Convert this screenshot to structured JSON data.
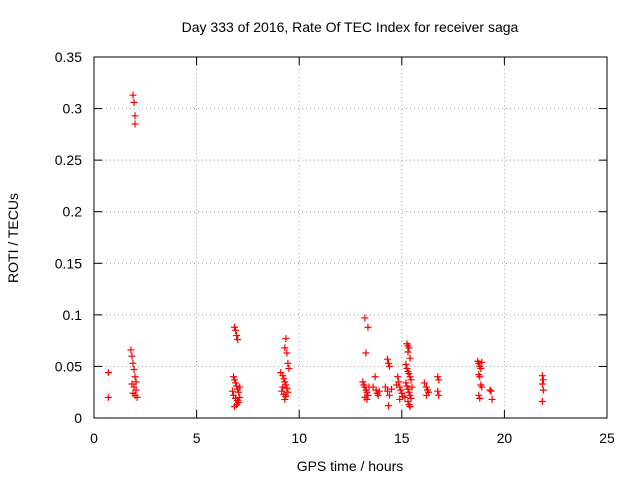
{
  "chart_data": {
    "type": "scatter",
    "title": "Day 333 of 2016, Rate Of TEC Index for receiver saga",
    "xlabel": "GPS time / hours",
    "ylabel": "ROTI / TECUs",
    "xlim": [
      0,
      25
    ],
    "ylim": [
      0,
      0.35
    ],
    "xticks": [
      0,
      5,
      10,
      15,
      20,
      25
    ],
    "yticks": [
      0,
      0.05,
      0.1,
      0.15,
      0.2,
      0.25,
      0.3,
      0.35
    ],
    "xtick_labels": [
      "0",
      "5",
      "10",
      "15",
      "20",
      "25"
    ],
    "ytick_labels": [
      "0",
      "0.05",
      "0.1",
      "0.15",
      "0.2",
      "0.25",
      "0.3",
      "0.35"
    ],
    "grid": true,
    "marker": "plus",
    "color": "#ff0000",
    "series": [
      {
        "name": "ROTI",
        "points": [
          [
            0.7,
            0.044
          ],
          [
            0.7,
            0.02
          ],
          [
            1.9,
            0.313
          ],
          [
            1.95,
            0.306
          ],
          [
            2.0,
            0.293
          ],
          [
            2.0,
            0.285
          ],
          [
            1.8,
            0.066
          ],
          [
            1.85,
            0.06
          ],
          [
            1.9,
            0.053
          ],
          [
            1.95,
            0.047
          ],
          [
            2.0,
            0.04
          ],
          [
            2.05,
            0.035
          ],
          [
            1.85,
            0.033
          ],
          [
            1.95,
            0.03
          ],
          [
            2.05,
            0.027
          ],
          [
            1.9,
            0.024
          ],
          [
            2.0,
            0.022
          ],
          [
            2.1,
            0.02
          ],
          [
            6.85,
            0.088
          ],
          [
            6.9,
            0.085
          ],
          [
            6.95,
            0.08
          ],
          [
            7.0,
            0.076
          ],
          [
            6.8,
            0.04
          ],
          [
            6.85,
            0.037
          ],
          [
            6.9,
            0.034
          ],
          [
            6.95,
            0.031
          ],
          [
            7.0,
            0.028
          ],
          [
            7.05,
            0.025
          ],
          [
            6.8,
            0.022
          ],
          [
            6.9,
            0.019
          ],
          [
            7.0,
            0.017
          ],
          [
            7.05,
            0.015
          ],
          [
            6.95,
            0.013
          ],
          [
            6.85,
            0.011
          ],
          [
            7.1,
            0.03
          ],
          [
            7.1,
            0.02
          ],
          [
            6.75,
            0.026
          ],
          [
            9.35,
            0.077
          ],
          [
            9.3,
            0.068
          ],
          [
            9.4,
            0.063
          ],
          [
            9.45,
            0.053
          ],
          [
            9.5,
            0.048
          ],
          [
            9.1,
            0.044
          ],
          [
            9.2,
            0.041
          ],
          [
            9.25,
            0.038
          ],
          [
            9.3,
            0.035
          ],
          [
            9.35,
            0.032
          ],
          [
            9.4,
            0.029
          ],
          [
            9.15,
            0.026
          ],
          [
            9.25,
            0.023
          ],
          [
            9.35,
            0.021
          ],
          [
            9.45,
            0.025
          ],
          [
            9.3,
            0.018
          ],
          [
            9.2,
            0.03
          ],
          [
            13.2,
            0.097
          ],
          [
            13.35,
            0.088
          ],
          [
            13.25,
            0.063
          ],
          [
            13.1,
            0.035
          ],
          [
            13.15,
            0.032
          ],
          [
            13.2,
            0.03
          ],
          [
            13.25,
            0.027
          ],
          [
            13.3,
            0.025
          ],
          [
            13.35,
            0.022
          ],
          [
            13.2,
            0.02
          ],
          [
            13.3,
            0.018
          ],
          [
            13.4,
            0.03
          ],
          [
            13.7,
            0.04
          ],
          [
            13.75,
            0.027
          ],
          [
            13.8,
            0.024
          ],
          [
            13.85,
            0.022
          ],
          [
            13.9,
            0.026
          ],
          [
            13.6,
            0.03
          ],
          [
            14.3,
            0.057
          ],
          [
            14.35,
            0.053
          ],
          [
            14.4,
            0.05
          ],
          [
            14.2,
            0.03
          ],
          [
            14.3,
            0.026
          ],
          [
            14.4,
            0.022
          ],
          [
            14.35,
            0.012
          ],
          [
            14.5,
            0.028
          ],
          [
            14.8,
            0.04
          ],
          [
            14.85,
            0.035
          ],
          [
            14.9,
            0.03
          ],
          [
            14.95,
            0.027
          ],
          [
            15.0,
            0.024
          ],
          [
            15.05,
            0.021
          ],
          [
            14.9,
            0.018
          ],
          [
            14.75,
            0.032
          ],
          [
            15.25,
            0.072
          ],
          [
            15.3,
            0.07
          ],
          [
            15.35,
            0.068
          ],
          [
            15.3,
            0.064
          ],
          [
            15.4,
            0.058
          ],
          [
            15.2,
            0.052
          ],
          [
            15.25,
            0.048
          ],
          [
            15.3,
            0.045
          ],
          [
            15.35,
            0.043
          ],
          [
            15.4,
            0.04
          ],
          [
            15.45,
            0.037
          ],
          [
            15.2,
            0.034
          ],
          [
            15.25,
            0.031
          ],
          [
            15.3,
            0.028
          ],
          [
            15.35,
            0.025
          ],
          [
            15.4,
            0.022
          ],
          [
            15.45,
            0.019
          ],
          [
            15.3,
            0.016
          ],
          [
            15.35,
            0.013
          ],
          [
            15.4,
            0.011
          ],
          [
            15.5,
            0.03
          ],
          [
            15.15,
            0.02
          ],
          [
            16.1,
            0.034
          ],
          [
            16.2,
            0.03
          ],
          [
            16.25,
            0.027
          ],
          [
            16.3,
            0.025
          ],
          [
            16.2,
            0.022
          ],
          [
            16.75,
            0.04
          ],
          [
            16.8,
            0.037
          ],
          [
            16.75,
            0.026
          ],
          [
            16.8,
            0.022
          ],
          [
            18.7,
            0.055
          ],
          [
            18.75,
            0.053
          ],
          [
            18.8,
            0.05
          ],
          [
            18.85,
            0.048
          ],
          [
            18.9,
            0.054
          ],
          [
            18.75,
            0.042
          ],
          [
            18.8,
            0.04
          ],
          [
            18.85,
            0.032
          ],
          [
            18.9,
            0.03
          ],
          [
            18.75,
            0.022
          ],
          [
            18.8,
            0.019
          ],
          [
            19.3,
            0.027
          ],
          [
            19.35,
            0.026
          ],
          [
            19.4,
            0.018
          ],
          [
            21.85,
            0.041
          ],
          [
            21.9,
            0.037
          ],
          [
            21.85,
            0.033
          ],
          [
            21.9,
            0.027
          ],
          [
            21.85,
            0.016
          ]
        ]
      }
    ]
  }
}
